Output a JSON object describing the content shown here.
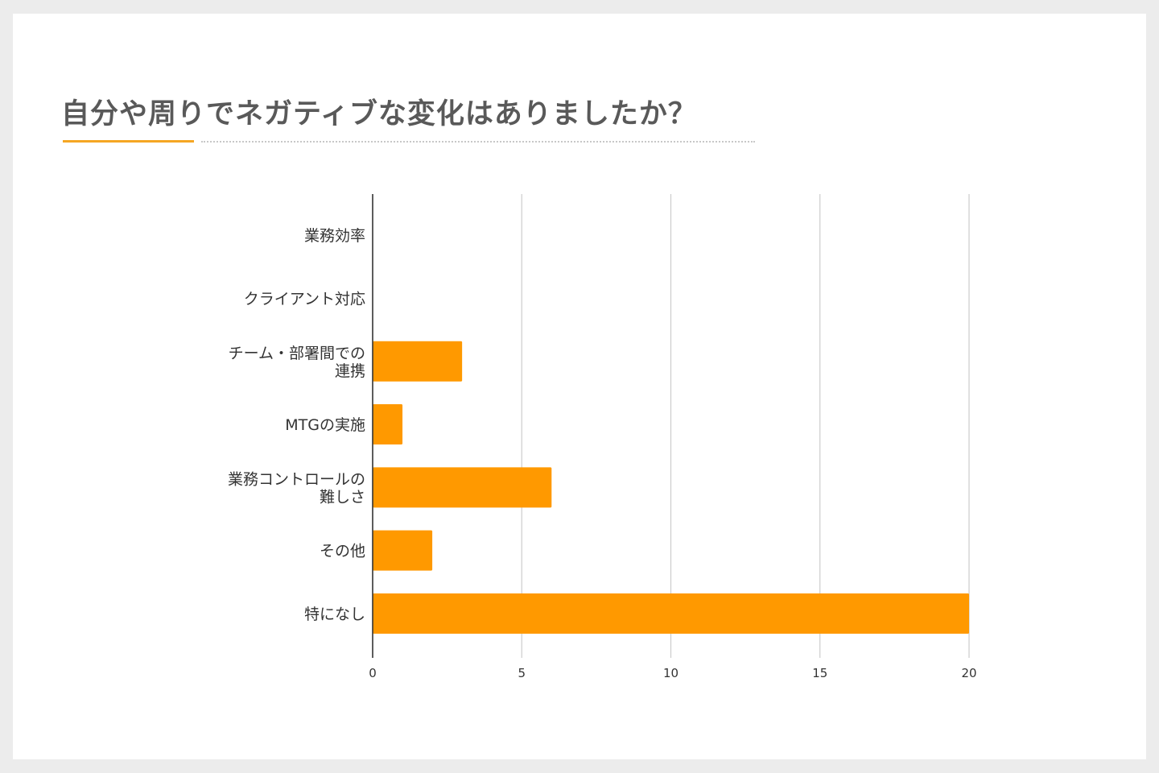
{
  "slide": {
    "title": "自分や周りでネガティブな変化はありましたか？"
  },
  "colors": {
    "bar": "#ff9900",
    "accent_rule": "#f5a623",
    "grid": "#cccccc",
    "axis": "#333333",
    "title_text": "#595959"
  },
  "chart_data": {
    "type": "bar",
    "orientation": "horizontal",
    "categories": [
      [
        "業務効率"
      ],
      [
        "クライアント対応"
      ],
      [
        "チーム・部署間での",
        "連携"
      ],
      [
        "MTGの実施"
      ],
      [
        "業務コントロールの",
        "難しさ"
      ],
      [
        "その他"
      ],
      [
        "特になし"
      ]
    ],
    "values": [
      0,
      0,
      3,
      1,
      6,
      2,
      20
    ],
    "xlim": [
      0,
      20
    ],
    "xticks": [
      "0",
      "5",
      "10",
      "15",
      "20"
    ],
    "grid": true,
    "legend": "none"
  }
}
